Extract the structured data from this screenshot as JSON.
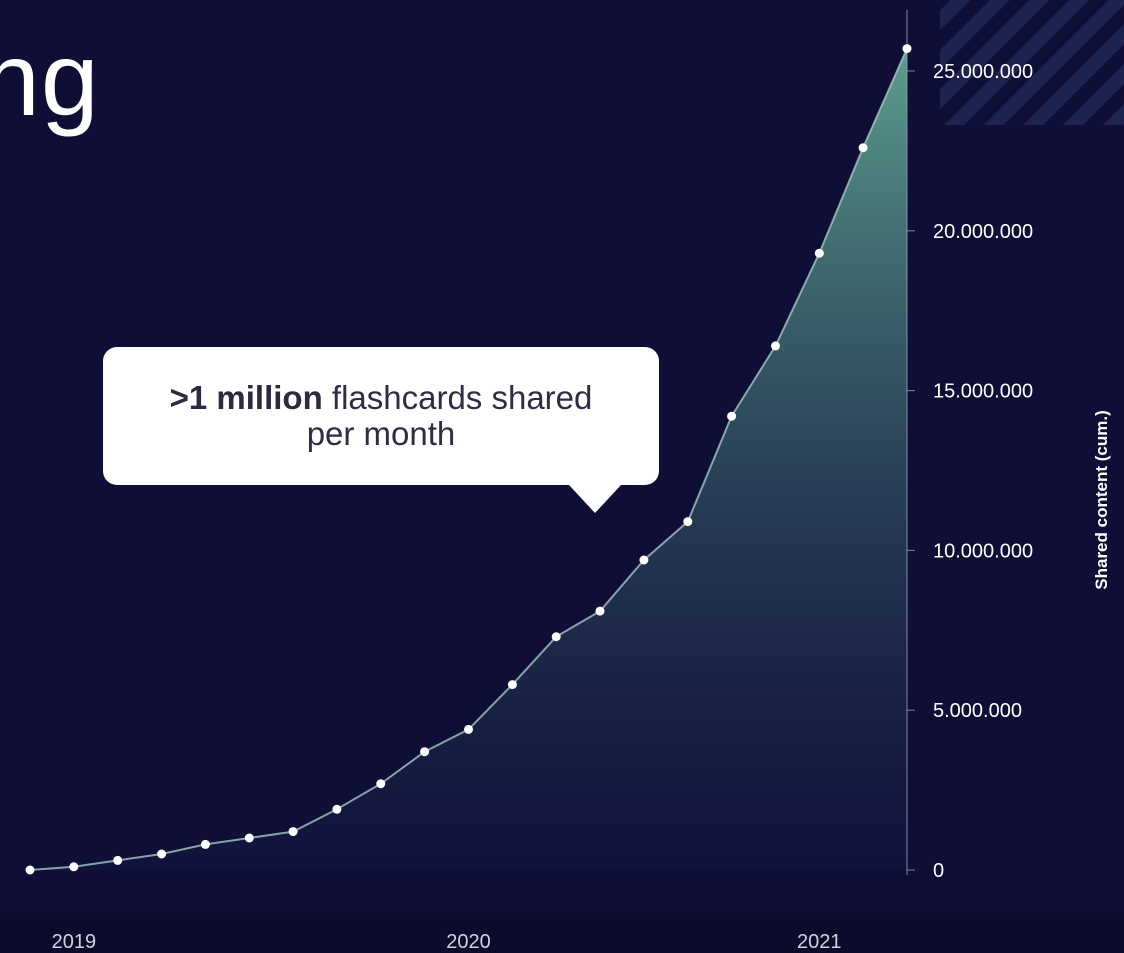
{
  "heading_fragment": "ng",
  "callout": {
    "bold": ">1 million",
    "line1": " flashcards shared",
    "line2": "per month"
  },
  "colors": {
    "background": "#0f0e36",
    "area_top": "#5fa592",
    "area_bottom": "#141a46",
    "line": "#9fc9c0",
    "points": "#ffffff",
    "axis": "#9aa0b4"
  },
  "chart_data": {
    "type": "area",
    "ylabel": "Shared content (cum.)",
    "ylim": [
      0,
      27000000
    ],
    "yticks": [
      0,
      5000000,
      10000000,
      15000000,
      20000000,
      25000000
    ],
    "ytick_labels": [
      "0",
      "5.000.000",
      "10.000.000",
      "15.000.000",
      "20.000.000",
      "25.000.000"
    ],
    "x_tick_labels": [
      "2019",
      "2020",
      "2021"
    ],
    "x_tick_index": [
      1,
      10,
      18
    ],
    "series": [
      {
        "values": [
          0,
          100000,
          300000,
          500000,
          800000,
          1000000,
          1200000,
          1900000,
          2700000,
          3700000,
          4400000,
          5800000,
          7300000,
          8100000,
          9700000,
          10900000,
          14200000,
          16400000,
          19300000,
          22600000,
          25700000
        ]
      }
    ]
  }
}
